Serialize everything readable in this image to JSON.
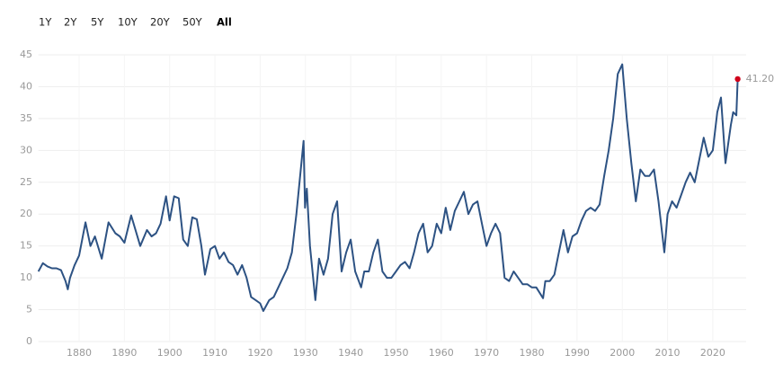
{
  "range_buttons": [
    "1Y",
    "2Y",
    "5Y",
    "10Y",
    "20Y",
    "50Y",
    "All"
  ],
  "selected_button": 6,
  "chart_data": {
    "type": "line",
    "x": [
      1871,
      1872,
      1873,
      1874,
      1875,
      1876,
      1877,
      1877.5,
      1878,
      1879,
      1880,
      1881.4,
      1882.5,
      1883.5,
      1885,
      1886.5,
      1888,
      1889,
      1890,
      1891.5,
      1893.5,
      1895,
      1896,
      1897,
      1898,
      1899.2,
      1900,
      1901,
      1902,
      1903,
      1904,
      1905,
      1906,
      1907,
      1907.8,
      1909,
      1910,
      1911,
      1912,
      1913,
      1914,
      1915,
      1916,
      1917,
      1918,
      1919,
      1920,
      1920.7,
      1922,
      1923,
      1924,
      1925,
      1926,
      1927,
      1928,
      1929.6,
      1929.9,
      1930.3,
      1931,
      1932.2,
      1933,
      1934,
      1935,
      1936,
      1937,
      1938,
      1939,
      1940,
      1941,
      1942.3,
      1943,
      1944,
      1945,
      1946,
      1947,
      1948,
      1949,
      1950,
      1951,
      1952,
      1953,
      1954,
      1955,
      1956,
      1957,
      1958,
      1959,
      1960,
      1961,
      1962,
      1963,
      1964,
      1965,
      1966,
      1967,
      1968,
      1969,
      1970,
      1971,
      1972,
      1973,
      1974,
      1975,
      1976,
      1977,
      1978,
      1979,
      1980,
      1981,
      1982.5,
      1983,
      1984,
      1985,
      1986,
      1987,
      1988,
      1989,
      1990,
      1991,
      1992,
      1993,
      1994,
      1995,
      1996,
      1997,
      1998,
      1999,
      2000,
      2001,
      2002,
      2003,
      2004,
      2005,
      2006,
      2007,
      2008,
      2009.3,
      2010,
      2011,
      2012,
      2013,
      2014,
      2015,
      2016,
      2017,
      2018,
      2019,
      2020,
      2021,
      2021.8,
      2022.8,
      2023,
      2024,
      2024.5,
      2025.2,
      2025.5
    ],
    "series": [
      {
        "color": "#2d5283",
        "values": [
          11,
          12.3,
          11.8,
          11.5,
          11.5,
          11.2,
          9.5,
          8.2,
          10,
          12,
          13.5,
          18.7,
          15,
          16.5,
          13,
          18.7,
          17,
          16.5,
          15.5,
          19.8,
          15,
          17.5,
          16.5,
          17,
          18.5,
          22.8,
          19,
          22.8,
          22.5,
          16,
          15,
          19.5,
          19.2,
          15,
          10.5,
          14.5,
          15,
          13,
          14,
          12.5,
          12,
          10.5,
          12,
          10,
          7,
          6.5,
          6,
          4.8,
          6.5,
          7,
          8.5,
          10,
          11.5,
          14,
          20,
          31.5,
          21,
          24,
          15,
          6.5,
          13,
          10.5,
          13,
          20,
          22,
          11,
          14,
          16,
          11,
          8.5,
          11,
          11,
          14,
          16,
          11,
          10,
          10,
          11,
          12,
          12.5,
          11.5,
          14,
          17,
          18.5,
          14,
          15,
          18.5,
          17,
          21,
          17.5,
          20.5,
          22,
          23.5,
          20,
          21.5,
          22,
          18.5,
          15,
          17,
          18.5,
          17,
          10,
          9.5,
          11,
          10,
          9,
          9,
          8.5,
          8.5,
          6.8,
          9.5,
          9.5,
          10.5,
          14,
          17.5,
          14,
          16.5,
          17,
          19,
          20.5,
          21,
          20.5,
          21.5,
          26,
          30,
          35,
          42,
          43.5,
          35,
          28,
          22,
          27,
          26,
          26,
          27,
          22,
          14,
          20,
          22,
          21,
          23,
          25,
          26.5,
          25,
          28.5,
          32,
          29,
          30,
          36,
          38.3,
          28,
          29,
          34,
          36,
          35.5,
          41.2
        ]
      }
    ],
    "last_point_label": "41.20",
    "last_point_color": "#d0021b",
    "xlim": [
      1871,
      2025.5
    ],
    "xticks": [
      1880,
      1890,
      1900,
      1910,
      1920,
      1930,
      1940,
      1950,
      1960,
      1970,
      1980,
      1990,
      2000,
      2010,
      2020
    ],
    "ylim": [
      0,
      45
    ],
    "yticks": [
      0,
      5,
      10,
      15,
      20,
      25,
      30,
      35,
      40,
      45
    ],
    "grid": true
  }
}
